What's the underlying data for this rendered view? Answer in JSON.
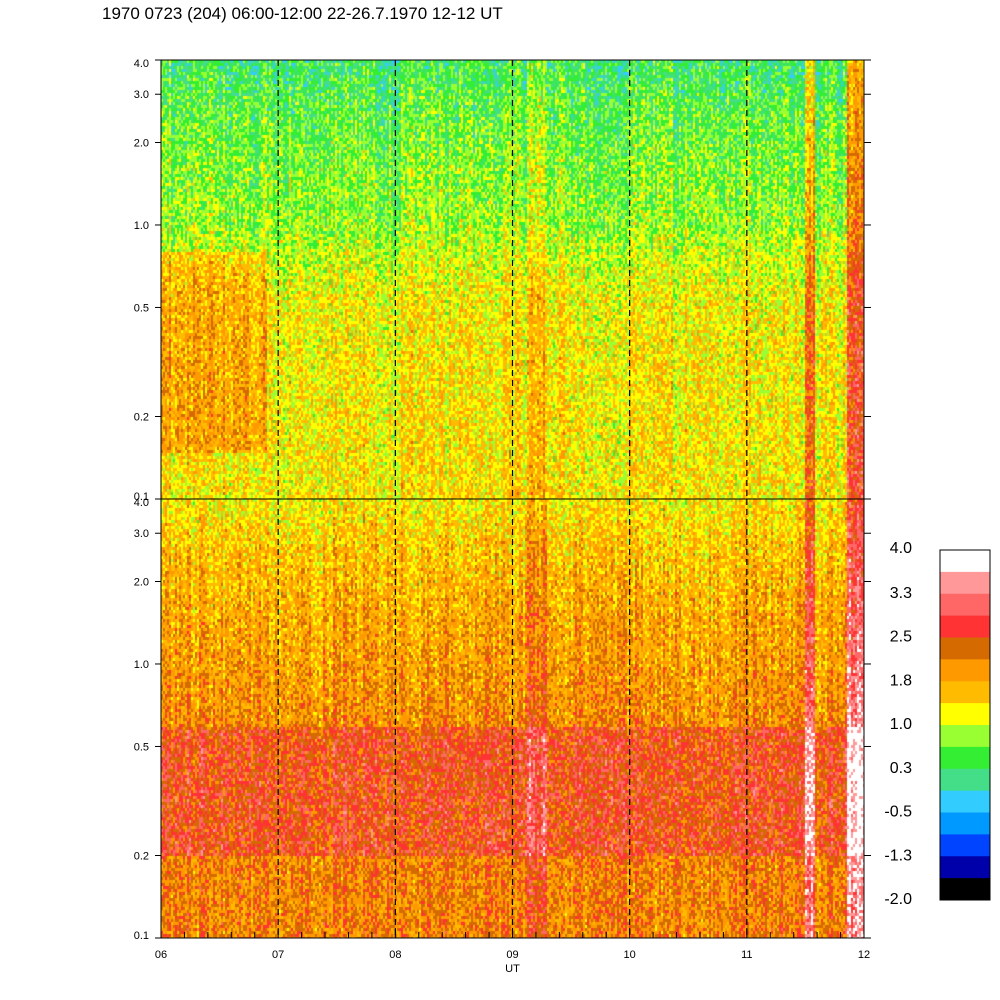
{
  "title": "1970 0723 (204) 06:00-12:00 22-26.7.1970  12-12 UT",
  "chart_data": {
    "type": "heatmap",
    "xlabel": "UT",
    "x_ticks": [
      "06",
      "07",
      "08",
      "09",
      "10",
      "11",
      "12"
    ],
    "xlim": [
      6,
      12
    ],
    "dashed_markers_ut": [
      7,
      8,
      9,
      10,
      11
    ],
    "panels": [
      {
        "id": "upper",
        "y_scale": "log",
        "ylim": [
          0.1,
          4.0
        ],
        "y_ticks": [
          4.0,
          3.0,
          2.0,
          1.0,
          0.5,
          0.2,
          0.1
        ],
        "y_tick_labels": [
          "4.0",
          "3.0",
          "2.0",
          "1.0",
          "0.5",
          "0.2",
          "0.1"
        ],
        "description_levels": {
          "high_freq_level": 0.3,
          "mid_freq_level": 0.8,
          "low_freq_level": 1.3
        }
      },
      {
        "id": "lower",
        "y_scale": "log",
        "ylim": [
          0.1,
          4.0
        ],
        "y_ticks": [
          4.0,
          3.0,
          2.0,
          1.0,
          0.5,
          0.2,
          0.1
        ],
        "y_tick_labels": [
          "4.0",
          "3.0",
          "2.0",
          "1.0",
          "0.5",
          "0.2",
          "0.1"
        ],
        "description_levels": {
          "high_freq_level": 1.3,
          "mid_freq_level": 1.9,
          "low_freq_level": 2.1
        }
      }
    ],
    "colorbar": {
      "labels": [
        "4.0",
        "3.3",
        "2.5",
        "1.8",
        "1.0",
        "0.3",
        "-0.5",
        "-1.3",
        "-2.0"
      ],
      "range": [
        -2.0,
        4.0
      ],
      "colors": [
        "#ffffff",
        "#ff9999",
        "#ff6666",
        "#ff3333",
        "#d46a00",
        "#ff9900",
        "#ffbb00",
        "#ffff00",
        "#99ff33",
        "#33ee33",
        "#44dd88",
        "#33ccff",
        "#0099ff",
        "#0044ff",
        "#0000aa",
        "#000000"
      ]
    }
  }
}
